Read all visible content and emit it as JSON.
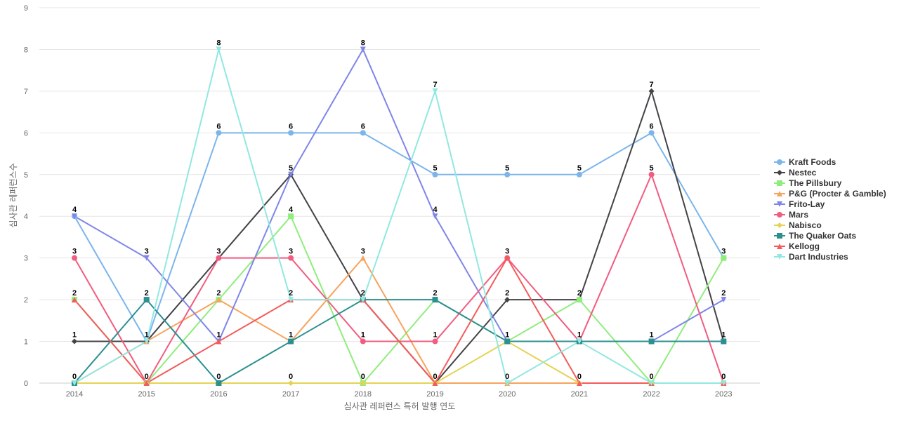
{
  "chart_data": {
    "type": "line",
    "title": "",
    "xlabel": "심사관 레퍼런스 특허 발행 연도",
    "ylabel": "심사관 레퍼런스수",
    "ylim": [
      0,
      9
    ],
    "yticks": [
      "0",
      "1",
      "2",
      "3",
      "4",
      "5",
      "6",
      "7",
      "8",
      "9"
    ],
    "categories": [
      "2014",
      "2015",
      "2016",
      "2017",
      "2018",
      "2019",
      "2020",
      "2021",
      "2022",
      "2023"
    ],
    "grid": true,
    "legend_position": "right",
    "series": [
      {
        "name": "Kraft Foods",
        "color": "#7cb5ec",
        "marker": "circle",
        "values": [
          4,
          1,
          6,
          6,
          6,
          5,
          5,
          5,
          6,
          3
        ]
      },
      {
        "name": "Nestec",
        "color": "#434348",
        "marker": "diamond",
        "values": [
          1,
          1,
          3,
          5,
          2,
          0,
          2,
          2,
          7,
          1
        ]
      },
      {
        "name": "The Pillsbury",
        "color": "#90ed7d",
        "marker": "square",
        "values": [
          2,
          0,
          2,
          4,
          0,
          2,
          1,
          2,
          0,
          3
        ]
      },
      {
        "name": "P&G (Procter & Gamble)",
        "color": "#f7a35c",
        "marker": "triangle",
        "values": [
          0,
          1,
          2,
          1,
          3,
          0,
          0,
          0,
          0,
          0
        ]
      },
      {
        "name": "Frito-Lay",
        "color": "#8085e9",
        "marker": "triangle-down",
        "values": [
          4,
          3,
          1,
          5,
          8,
          4,
          1,
          1,
          1,
          2
        ]
      },
      {
        "name": "Mars",
        "color": "#f15c80",
        "marker": "circle",
        "values": [
          3,
          0,
          3,
          3,
          1,
          1,
          3,
          1,
          5,
          0
        ]
      },
      {
        "name": "Nabisco",
        "color": "#e4d354",
        "marker": "diamond",
        "values": [
          0,
          0,
          0,
          0,
          0,
          0,
          1,
          0,
          0,
          0
        ]
      },
      {
        "name": "The Quaker Oats",
        "color": "#2b908f",
        "marker": "square",
        "values": [
          0,
          2,
          0,
          1,
          2,
          2,
          1,
          1,
          1,
          1
        ]
      },
      {
        "name": "Kellogg",
        "color": "#f45b5b",
        "marker": "triangle",
        "values": [
          2,
          0,
          1,
          2,
          2,
          0,
          3,
          0,
          0,
          0
        ]
      },
      {
        "name": "Dart Industries",
        "color": "#91e8e1",
        "marker": "triangle-down",
        "values": [
          0,
          1,
          8,
          2,
          2,
          7,
          0,
          1,
          0,
          0
        ]
      }
    ],
    "data_labels": [
      {
        "category": "2014",
        "values": [
          "4",
          "3",
          "2",
          "1",
          "0"
        ]
      },
      {
        "category": "2015",
        "values": [
          "3",
          "2",
          "1",
          "0"
        ]
      },
      {
        "category": "2016",
        "values": [
          "8",
          "6",
          "3",
          "2",
          "1",
          "0"
        ]
      },
      {
        "category": "2017",
        "values": [
          "6",
          "5",
          "4",
          "3",
          "2",
          "1",
          "0"
        ]
      },
      {
        "category": "2018",
        "values": [
          "8",
          "6",
          "3",
          "2",
          "1",
          "0"
        ]
      },
      {
        "category": "2019",
        "values": [
          "7",
          "5",
          "4",
          "2",
          "1",
          "0"
        ]
      },
      {
        "category": "2020",
        "values": [
          "5",
          "3",
          "2",
          "1",
          "0"
        ]
      },
      {
        "category": "2021",
        "values": [
          "5",
          "2",
          "1",
          "0"
        ]
      },
      {
        "category": "2022",
        "values": [
          "7",
          "6",
          "5",
          "1",
          "0"
        ]
      },
      {
        "category": "2023",
        "values": [
          "3",
          "2",
          "1",
          "0"
        ]
      }
    ]
  }
}
